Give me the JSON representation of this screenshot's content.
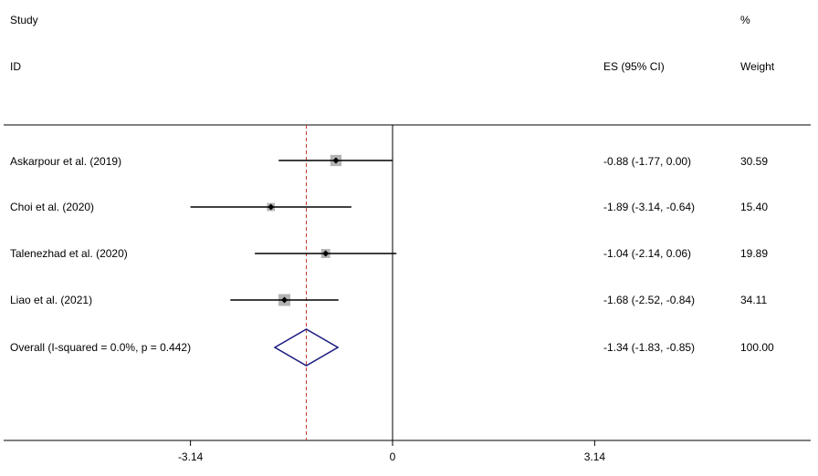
{
  "header": {
    "col_study_top": "Study",
    "col_study_bottom": "ID",
    "col_es": "ES (95% CI)",
    "col_weight_top": "%",
    "col_weight_bottom": "Weight"
  },
  "chart_data": {
    "type": "forest",
    "title": "",
    "xlabel": "",
    "ylabel": "",
    "x_ticks": [
      {
        "label": "-3.14",
        "value": -3.14
      },
      {
        "label": "0",
        "value": 0
      },
      {
        "label": "3.14",
        "value": 3.14
      }
    ],
    "null_line": 0,
    "overall_line": -1.34,
    "studies": [
      {
        "name": "Askarpour et al. (2019)",
        "es": -0.88,
        "lower": -1.77,
        "upper": 0.0,
        "es_ci": "-0.88 (-1.77, 0.00)",
        "weight": "30.59"
      },
      {
        "name": "Choi et al. (2020)",
        "es": -1.89,
        "lower": -3.14,
        "upper": -0.64,
        "es_ci": "-1.89 (-3.14, -0.64)",
        "weight": "15.40"
      },
      {
        "name": "Talenezhad et al. (2020)",
        "es": -1.04,
        "lower": -2.14,
        "upper": 0.06,
        "es_ci": "-1.04 (-2.14, 0.06)",
        "weight": "19.89"
      },
      {
        "name": "Liao et al. (2021)",
        "es": -1.68,
        "lower": -2.52,
        "upper": -0.84,
        "es_ci": "-1.68 (-2.52, -0.84)",
        "weight": "34.11"
      }
    ],
    "overall": {
      "name": "Overall  (I-squared = 0.0%, p = 0.442)",
      "es": -1.34,
      "lower": -1.83,
      "upper": -0.85,
      "es_ci": "-1.34 (-1.83, -0.85)",
      "weight": "100.00"
    },
    "colors": {
      "ci_line": "#000000",
      "weight_box": "#b3b3b3",
      "point": "#000000",
      "diamond": "#1a1a80",
      "overall_line": "#c0392b",
      "axis": "#000000"
    }
  }
}
